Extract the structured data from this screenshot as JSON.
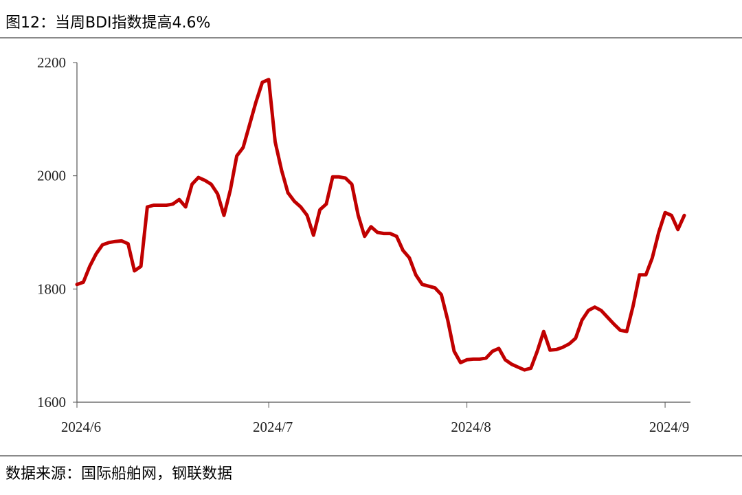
{
  "chart_data": {
    "type": "line",
    "title": "图12：当周BDI指数提高4.6%",
    "source": "数据来源：国际船舶网，钢联数据",
    "categories": [
      "2024/6",
      null,
      null,
      null,
      null,
      null,
      null,
      null,
      null,
      null,
      null,
      null,
      null,
      null,
      null,
      null,
      null,
      null,
      null,
      null,
      null,
      null,
      null,
      null,
      null,
      null,
      null,
      null,
      null,
      null,
      "2024/7",
      null,
      null,
      null,
      null,
      null,
      null,
      null,
      null,
      null,
      null,
      null,
      null,
      null,
      null,
      null,
      null,
      null,
      null,
      null,
      null,
      null,
      null,
      null,
      null,
      null,
      null,
      null,
      null,
      null,
      null,
      "2024/8",
      null,
      null,
      null,
      null,
      null,
      null,
      null,
      null,
      null,
      null,
      null,
      null,
      null,
      null,
      null,
      null,
      null,
      null,
      null,
      null,
      null,
      null,
      null,
      null,
      null,
      null,
      null,
      null,
      null,
      null,
      "2024/9",
      null,
      null,
      null
    ],
    "values": [
      1808,
      1812,
      1840,
      1862,
      1878,
      1882,
      1884,
      1885,
      1880,
      1832,
      1840,
      1945,
      1948,
      1948,
      1948,
      1950,
      1958,
      1945,
      1985,
      1997,
      1992,
      1985,
      1968,
      1930,
      1975,
      2035,
      2050,
      2090,
      2130,
      2165,
      2170,
      2060,
      2010,
      1970,
      1955,
      1945,
      1930,
      1895,
      1940,
      1950,
      1998,
      1998,
      1996,
      1985,
      1930,
      1893,
      1910,
      1900,
      1898,
      1898,
      1893,
      1868,
      1855,
      1825,
      1808,
      1805,
      1802,
      1790,
      1745,
      1690,
      1670,
      1675,
      1676,
      1676,
      1678,
      1690,
      1695,
      1675,
      1667,
      1662,
      1657,
      1660,
      1690,
      1725,
      1692,
      1693,
      1697,
      1703,
      1713,
      1745,
      1762,
      1768,
      1762,
      1750,
      1738,
      1727,
      1725,
      1770,
      1825,
      1825,
      1855,
      1900,
      1935,
      1930,
      1905,
      1930
    ],
    "color": "#c00000",
    "ylim": [
      1600,
      2200
    ],
    "yticks": [
      1600,
      1800,
      2000,
      2200
    ]
  }
}
